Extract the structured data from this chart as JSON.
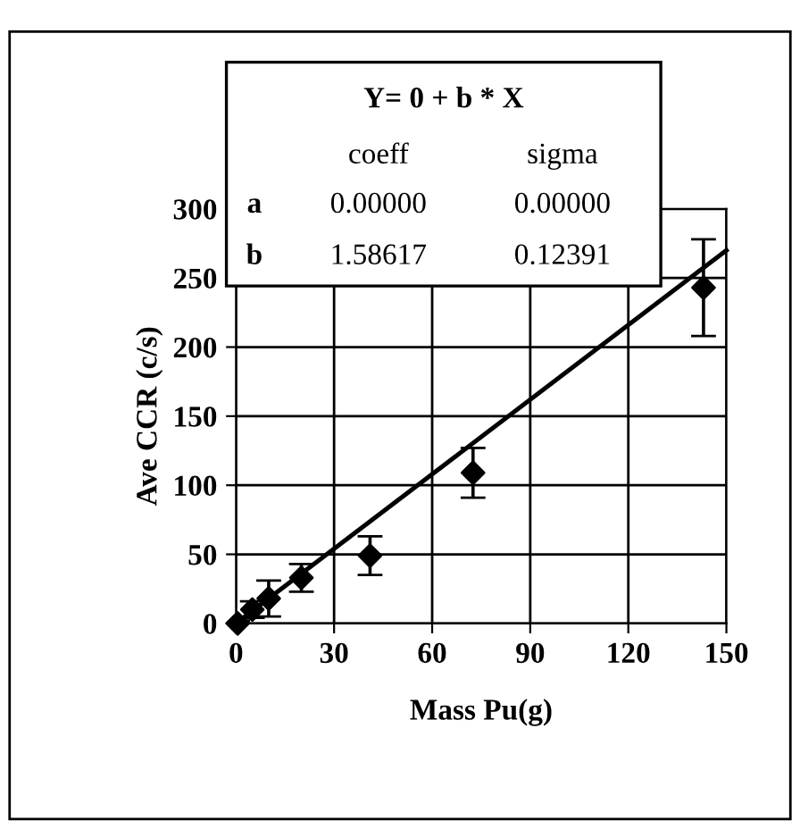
{
  "chart_data": {
    "type": "scatter",
    "xlabel": "Mass Pu(g)",
    "ylabel": "Ave CCR (c/s)",
    "xlim": [
      0,
      150
    ],
    "ylim": [
      0,
      300
    ],
    "xticks": [
      0,
      30,
      60,
      90,
      120,
      150
    ],
    "yticks": [
      0,
      50,
      100,
      150,
      200,
      250,
      300
    ],
    "grid": true,
    "legend": false,
    "annotations": [
      "Y= 0 + b * X",
      "coeff",
      "sigma",
      "a",
      "0.00000",
      "0.00000",
      "b",
      "1.58617",
      "0.12391"
    ],
    "series": [
      {
        "color": "#000000",
        "marker": "diamond",
        "x": [
          0.5,
          5,
          10,
          20,
          41,
          72.5,
          143
        ],
        "values": [
          0,
          10,
          18,
          33,
          49,
          109,
          243
        ],
        "errors": [
          2,
          6,
          13,
          10,
          14,
          18,
          35
        ]
      },
      {
        "type": "line",
        "color": "#000000",
        "marker": "none",
        "line_style": "solid",
        "x": [
          0,
          150
        ],
        "values": [
          0,
          270
        ]
      }
    ]
  }
}
